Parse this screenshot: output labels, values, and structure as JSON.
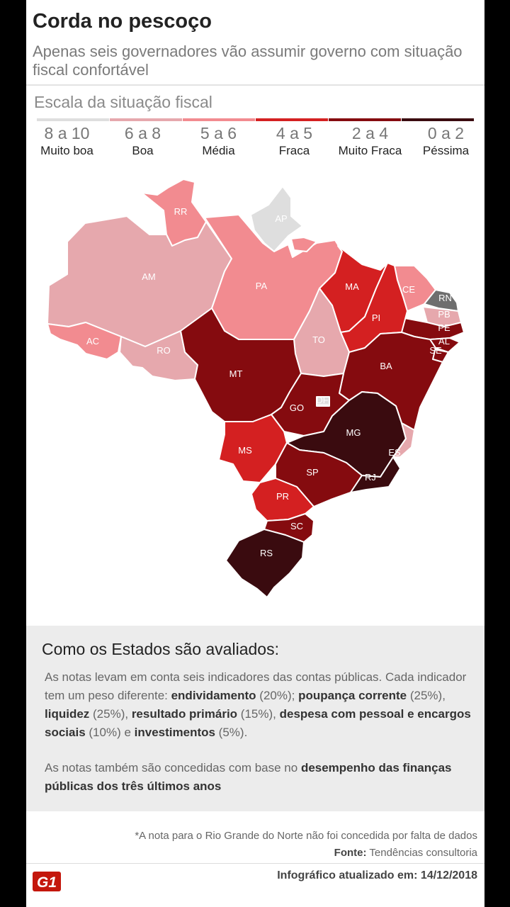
{
  "header": {
    "title": "Corda no pescoço",
    "subtitle": "Apenas seis governadores vão assumir governo com situação fiscal confortável"
  },
  "scale": {
    "title": "Escala da situação fiscal",
    "items": [
      {
        "range": "8 a 10",
        "label": "Muito boa",
        "color": "#dedede"
      },
      {
        "range": "6 a 8",
        "label": "Boa",
        "color": "#e6a8ad"
      },
      {
        "range": "5 a 6",
        "label": "Média",
        "color": "#f28b90"
      },
      {
        "range": "4 a 5",
        "label": "Fraca",
        "color": "#d42021"
      },
      {
        "range": "2 a 4",
        "label": "Muito Fraca",
        "color": "#850b0f"
      },
      {
        "range": "0 a 2",
        "label": "Péssima",
        "color": "#3a0b0f"
      }
    ]
  },
  "map": {
    "no_data_color": "#6e6e6e",
    "states": [
      {
        "uf": "RR",
        "grade": "5 a 6"
      },
      {
        "uf": "AP",
        "grade": "8 a 10"
      },
      {
        "uf": "AM",
        "grade": "6 a 8"
      },
      {
        "uf": "PA",
        "grade": "5 a 6"
      },
      {
        "uf": "MA",
        "grade": "4 a 5"
      },
      {
        "uf": "CE",
        "grade": "5 a 6"
      },
      {
        "uf": "RN*",
        "grade": "sem nota"
      },
      {
        "uf": "PB",
        "grade": "6 a 8"
      },
      {
        "uf": "PE",
        "grade": "2 a 4"
      },
      {
        "uf": "AL",
        "grade": "2 a 4"
      },
      {
        "uf": "SE",
        "grade": "2 a 4"
      },
      {
        "uf": "PI",
        "grade": "4 a 5"
      },
      {
        "uf": "AC",
        "grade": "5 a 6"
      },
      {
        "uf": "RO",
        "grade": "6 a 8"
      },
      {
        "uf": "TO",
        "grade": "6 a 8"
      },
      {
        "uf": "BA",
        "grade": "2 a 4"
      },
      {
        "uf": "MT",
        "grade": "2 a 4"
      },
      {
        "uf": "GO",
        "grade": "2 a 4"
      },
      {
        "uf": "DF",
        "grade": "8 a 10"
      },
      {
        "uf": "MG",
        "grade": "0 a 2"
      },
      {
        "uf": "ES",
        "grade": "6 a 8"
      },
      {
        "uf": "MS",
        "grade": "4 a 5"
      },
      {
        "uf": "SP",
        "grade": "2 a 4"
      },
      {
        "uf": "RJ",
        "grade": "0 a 2"
      },
      {
        "uf": "PR",
        "grade": "4 a 5"
      },
      {
        "uf": "SC",
        "grade": "2 a 4"
      },
      {
        "uf": "RS",
        "grade": "0 a 2"
      }
    ]
  },
  "info": {
    "title": "Como os Estados são avaliados:",
    "p1": {
      "intro": "As notas levam em conta seis indicadores das contas públicas. Cada indicador tem um peso diferente:",
      "items": [
        {
          "name": "endividamento",
          "weight": "(20%)",
          "sep": ";"
        },
        {
          "name": "poupança corrente",
          "weight": "(25%)",
          "sep": ","
        },
        {
          "name": "liquidez",
          "weight": "(25%)",
          "sep": ","
        },
        {
          "name": "resultado primário",
          "weight": "(15%)",
          "sep": ","
        },
        {
          "name": "despesa com pessoal e encargos sociais",
          "weight": "(10%)",
          "sep": " e"
        },
        {
          "name": "investimentos",
          "weight": "(5%)",
          "sep": "."
        }
      ]
    },
    "p2": {
      "text": "As notas também são concedidas com base no",
      "bold": "desempenho das finanças públicas dos três últimos anos"
    }
  },
  "footer": {
    "footnote": "*A nota para o Rio Grande do Norte não foi concedida por falta de dados",
    "source_label": "Fonte:",
    "source": "Tendências consultoria",
    "logo_text": "G1",
    "updated_label": "Infográfico atualizado em:",
    "updated": "14/12/2018"
  }
}
